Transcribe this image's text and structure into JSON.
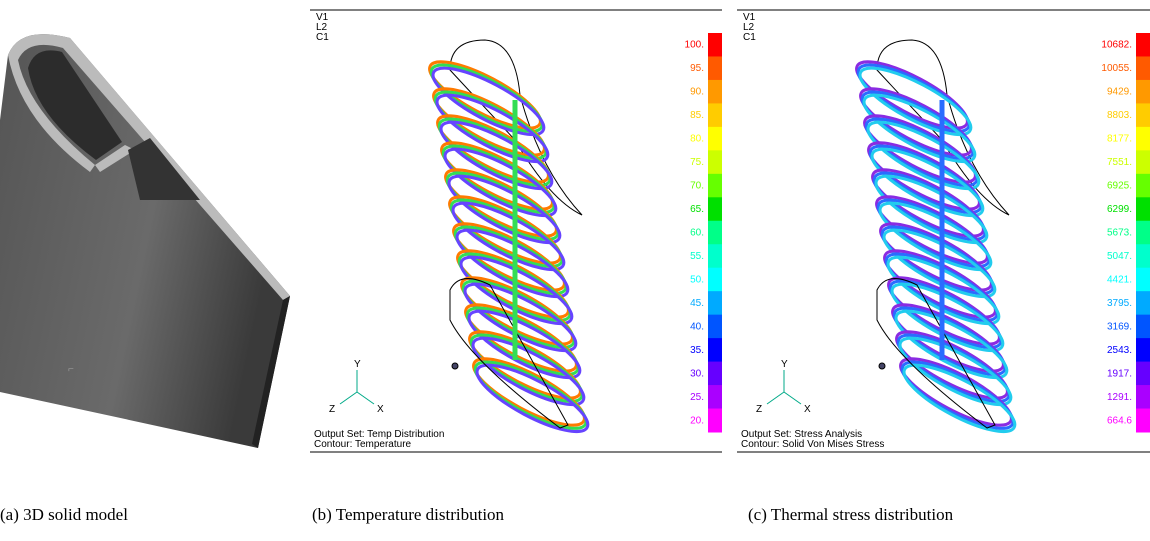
{
  "panels": [
    {
      "caption": "(a) 3D solid model"
    },
    {
      "caption": "(b) Temperature distribution",
      "view_labels": [
        "V1",
        "L2",
        "C1"
      ],
      "axis_labels": [
        "Y",
        "Z",
        "X"
      ],
      "output_set": "Output Set: Temp Distribution",
      "contour": "Contour: Temperature",
      "legend": [
        {
          "label": "100.",
          "color": "#ff0000"
        },
        {
          "label": "95.",
          "color": "#ff5a00"
        },
        {
          "label": "90.",
          "color": "#ff9900"
        },
        {
          "label": "85.",
          "color": "#ffcc00"
        },
        {
          "label": "80.",
          "color": "#ffff00"
        },
        {
          "label": "75.",
          "color": "#ccff00"
        },
        {
          "label": "70.",
          "color": "#66ff00"
        },
        {
          "label": "65.",
          "color": "#00e000"
        },
        {
          "label": "60.",
          "color": "#00ff88"
        },
        {
          "label": "55.",
          "color": "#00ffcc"
        },
        {
          "label": "50.",
          "color": "#00ffff"
        },
        {
          "label": "45.",
          "color": "#00aaff"
        },
        {
          "label": "40.",
          "color": "#0055ff"
        },
        {
          "label": "35.",
          "color": "#0000ff"
        },
        {
          "label": "30.",
          "color": "#6600ff"
        },
        {
          "label": "25.",
          "color": "#aa00ff"
        },
        {
          "label": "20.",
          "color": "#ff00ff"
        }
      ]
    },
    {
      "caption": "(c) Thermal stress distribution",
      "view_labels": [
        "V1",
        "L2",
        "C1"
      ],
      "axis_labels": [
        "Y",
        "Z",
        "X"
      ],
      "output_set": "Output Set: Stress Analysis",
      "contour": "Contour: Solid Von Mises Stress",
      "legend": [
        {
          "label": "10682.",
          "color": "#ff0000"
        },
        {
          "label": "10055.",
          "color": "#ff5a00"
        },
        {
          "label": "9429.",
          "color": "#ff9900"
        },
        {
          "label": "8803.",
          "color": "#ffcc00"
        },
        {
          "label": "8177.",
          "color": "#ffff00"
        },
        {
          "label": "7551.",
          "color": "#ccff00"
        },
        {
          "label": "6925.",
          "color": "#66ff00"
        },
        {
          "label": "6299.",
          "color": "#00e000"
        },
        {
          "label": "5673.",
          "color": "#00ff88"
        },
        {
          "label": "5047.",
          "color": "#00ffcc"
        },
        {
          "label": "4421.",
          "color": "#00ffff"
        },
        {
          "label": "3795.",
          "color": "#00aaff"
        },
        {
          "label": "3169.",
          "color": "#0055ff"
        },
        {
          "label": "2543.",
          "color": "#0000ff"
        },
        {
          "label": "1917.",
          "color": "#6600ff"
        },
        {
          "label": "1291.",
          "color": "#aa00ff"
        },
        {
          "label": "664.6",
          "color": "#ff00ff"
        }
      ]
    }
  ]
}
